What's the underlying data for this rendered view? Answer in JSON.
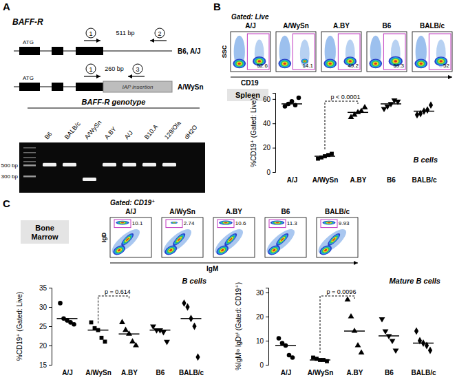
{
  "panel_letters": [
    "A",
    "B",
    "C"
  ],
  "gene_diagram": {
    "title": "BAFF-R",
    "alleles": [
      {
        "label": "B6, A/J",
        "start_codon": "ATG",
        "product": "511 bp",
        "primers": [
          "1",
          "2"
        ]
      },
      {
        "label": "A/WySn",
        "start_codon": "ATG",
        "product": "260 bp",
        "primers": [
          "1",
          "3"
        ],
        "insertion": "IAP insertion"
      }
    ]
  },
  "gel": {
    "title": "BAFF-R genotype",
    "lanes": [
      "B6",
      "BALB/c",
      "A/WySn",
      "A.BY",
      "A/J",
      "B10.A",
      "129/Ola",
      "dH2O"
    ],
    "band_bp": [
      511,
      511,
      260,
      511,
      511,
      511,
      511,
      null
    ],
    "markers": [
      {
        "value": 500,
        "label": "500 bp"
      },
      {
        "value": 300,
        "label": "300 bp"
      }
    ]
  },
  "flow_b": {
    "gating": "Gated: Live",
    "tissue": "Spleen",
    "xlabel": "CD19",
    "ylabel": "SSC",
    "samples": [
      "A/J",
      "A/WySn",
      "A.BY",
      "B6",
      "BALB/c"
    ],
    "gate_percent": [
      52.6,
      14.1,
      49.2,
      59.3,
      52
    ]
  },
  "flow_c": {
    "gating": "Gated: CD19⁺",
    "tissue": "Bone Marrow",
    "xlabel": "IgM",
    "ylabel": "IgD",
    "samples": [
      "A/J",
      "A/WySn",
      "A.BY",
      "B6",
      "BALB/c"
    ],
    "gate_percent": [
      10.1,
      2.74,
      10.6,
      11.3,
      9.93
    ]
  },
  "chart_data": [
    {
      "type": "scatter",
      "title": "B cells",
      "ylabel": "%CD19⁺ (Gated: Live)",
      "categories": [
        "A/J",
        "A/WySn",
        "A.BY",
        "B6",
        "BALB/c"
      ],
      "ylim": [
        0,
        65
      ],
      "yticks": [
        0,
        20,
        40,
        60
      ],
      "series": [
        {
          "marker": "circle",
          "color": "#000000",
          "values": [
            54,
            56,
            58,
            55,
            61
          ],
          "mean": 56
        },
        {
          "marker": "square",
          "color": "#000000",
          "values": [
            11,
            12,
            13,
            14,
            15
          ],
          "mean": 13
        },
        {
          "marker": "triangle",
          "color": "#000000",
          "values": [
            45,
            47,
            49,
            50,
            53
          ],
          "mean": 49
        },
        {
          "marker": "triangle-down",
          "color": "#000000",
          "values": [
            52,
            54,
            56,
            59,
            58
          ],
          "mean": 56
        },
        {
          "marker": "diamond",
          "color": "#000000",
          "values": [
            47,
            48,
            50,
            51,
            55
          ],
          "mean": 50
        }
      ],
      "annotations": [
        {
          "text": "p < 0.0001",
          "between": [
            "A/WySn",
            "A.BY"
          ]
        }
      ]
    },
    {
      "type": "scatter",
      "title": "B cells",
      "ylabel": "%CD19⁺ (Gated: Live)",
      "categories": [
        "A/J",
        "A/WySn",
        "A.BY",
        "B6",
        "BALB/c"
      ],
      "ylim": [
        15,
        35
      ],
      "yticks": [
        15,
        20,
        25,
        30,
        35
      ],
      "series": [
        {
          "marker": "circle",
          "color": "#000000",
          "values": [
            31,
            27,
            26.5,
            26,
            25.5
          ],
          "mean": 27
        },
        {
          "marker": "square",
          "color": "#000000",
          "values": [
            26,
            24.5,
            24,
            22,
            21
          ],
          "mean": 24
        },
        {
          "marker": "triangle",
          "color": "#000000",
          "values": [
            26,
            24,
            23,
            21,
            20
          ],
          "mean": 23
        },
        {
          "marker": "triangle-down",
          "color": "#000000",
          "values": [
            25,
            24,
            24,
            23.5,
            21
          ],
          "mean": 24
        },
        {
          "marker": "diamond",
          "color": "#000000",
          "values": [
            31,
            30,
            27,
            25,
            17
          ],
          "mean": 27
        }
      ],
      "annotations": [
        {
          "text": "p = 0.614",
          "between": [
            "A/WySn",
            "A.BY"
          ]
        }
      ]
    },
    {
      "type": "scatter",
      "title": "Mature B cells",
      "ylabel": "%IgMˡᵒ IgDʰⁱ (Gated: CD19⁺)",
      "categories": [
        "A/J",
        "A/WySn",
        "A.BY",
        "B6",
        "BALB/c"
      ],
      "ylim": [
        0,
        32
      ],
      "yticks": [
        0,
        10,
        20,
        30
      ],
      "series": [
        {
          "marker": "circle",
          "color": "#000000",
          "values": [
            11,
            9,
            8,
            4,
            3
          ],
          "mean": 8
        },
        {
          "marker": "square",
          "color": "#000000",
          "values": [
            3,
            2.5,
            2,
            2,
            1.5
          ],
          "mean": 2
        },
        {
          "marker": "triangle",
          "color": "#000000",
          "values": [
            27,
            20,
            14,
            8,
            5
          ],
          "mean": 14
        },
        {
          "marker": "triangle-down",
          "color": "#000000",
          "values": [
            19,
            14,
            12,
            10,
            6
          ],
          "mean": 12
        },
        {
          "marker": "diamond",
          "color": "#000000",
          "values": [
            14,
            10,
            9,
            8,
            6
          ],
          "mean": 9
        }
      ],
      "annotations": [
        {
          "text": "p = 0.0096",
          "between": [
            "A/WySn",
            "A.BY"
          ]
        }
      ]
    }
  ]
}
